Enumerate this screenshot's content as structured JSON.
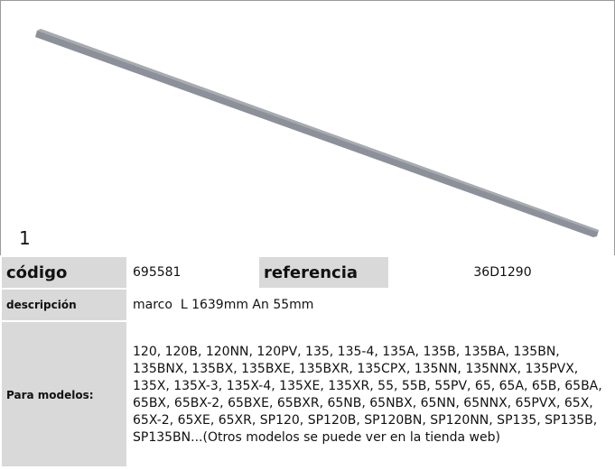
{
  "image_label": "1",
  "table": {
    "rows": [
      [
        "código",
        "695581",
        "referencia",
        "36D1290"
      ],
      [
        "descripción",
        "marco  L 1639mm An 55mm"
      ],
      [
        "Para modelos:",
        "120, 120B, 120NN, 120PV, 135, 135-4, 135A, 135B, 135BA, 135BN, 135BNX, 135BX, 135BXE, 135BXR, 135CPX, 135NN, 135NNX, 135PVX, 135X, 135X-3, 135X-4, 135XE, 135XR, 55, 55B, 55PV, 65, 65A, 65B, 65BA, 65BX, 65BX-2, 65BXE, 65BXR, 65NB, 65NBX, 65NN, 65NNX, 65PVX, 65X, 65X-2, 65XE, 65XR, SP120, SP120B, SP120BN, SP120NN, SP135, SP135B, SP135BN...(Otros modelos se puede ver en la tienda web)"
      ]
    ]
  }
}
